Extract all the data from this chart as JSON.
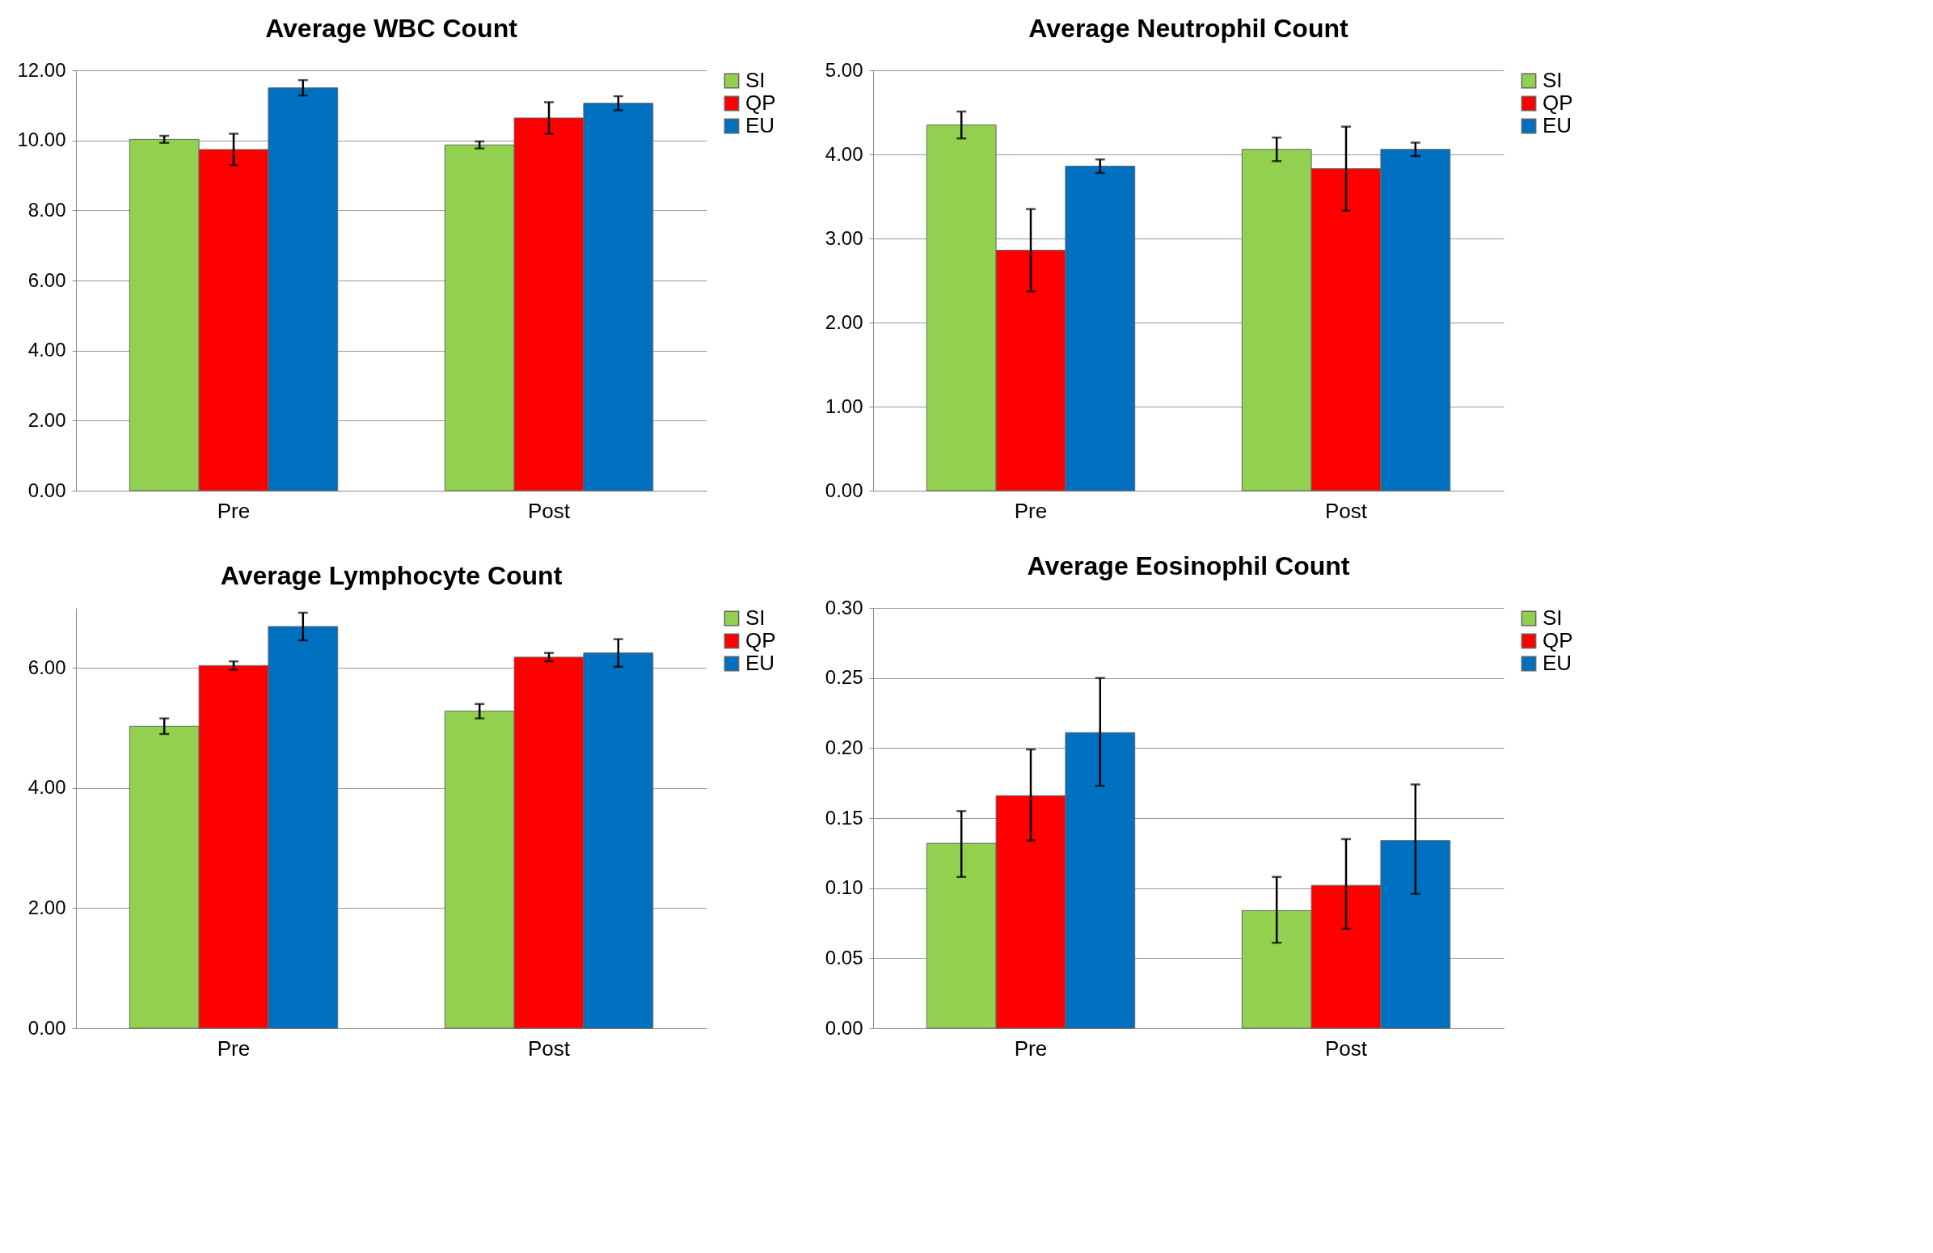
{
  "chart_data": [
    {
      "type": "bar",
      "title": "Average WBC Count",
      "categories": [
        "Pre",
        "Post"
      ],
      "ylim": [
        0,
        12
      ],
      "yticks": [
        {
          "value": 0,
          "label": "0.00"
        },
        {
          "value": 2,
          "label": "2.00"
        },
        {
          "value": 4,
          "label": "4.00"
        },
        {
          "value": 6,
          "label": "6.00"
        },
        {
          "value": 8,
          "label": "8.00"
        },
        {
          "value": 10,
          "label": "10.00"
        },
        {
          "value": 12,
          "label": "12.00"
        }
      ],
      "grid": "y",
      "legend": "right",
      "series": [
        {
          "name": "SI",
          "color": "#92d050",
          "values": [
            10.03,
            9.87
          ],
          "errors": [
            0.1,
            0.1
          ]
        },
        {
          "name": "QP",
          "color": "#ff0000",
          "values": [
            9.74,
            10.64
          ],
          "errors": [
            0.45,
            0.45
          ]
        },
        {
          "name": "EU",
          "color": "#0070c0",
          "values": [
            11.5,
            11.06
          ],
          "errors": [
            0.22,
            0.2
          ]
        }
      ]
    },
    {
      "type": "bar",
      "title": "Average Neutrophil Count",
      "categories": [
        "Pre",
        "Post"
      ],
      "ylim": [
        0,
        5
      ],
      "yticks": [
        {
          "value": 0,
          "label": "0.00"
        },
        {
          "value": 1,
          "label": "1.00"
        },
        {
          "value": 2,
          "label": "2.00"
        },
        {
          "value": 3,
          "label": "3.00"
        },
        {
          "value": 4,
          "label": "4.00"
        },
        {
          "value": 5,
          "label": "5.00"
        }
      ],
      "grid": "y",
      "legend": "right",
      "series": [
        {
          "name": "SI",
          "color": "#92d050",
          "values": [
            4.35,
            4.06
          ],
          "errors": [
            0.16,
            0.14
          ]
        },
        {
          "name": "QP",
          "color": "#ff0000",
          "values": [
            2.86,
            3.83
          ],
          "errors": [
            0.49,
            0.5
          ]
        },
        {
          "name": "EU",
          "color": "#0070c0",
          "values": [
            3.86,
            4.06
          ],
          "errors": [
            0.08,
            0.08
          ]
        }
      ]
    },
    {
      "type": "bar",
      "title": "Average Lymphocyte Count",
      "categories": [
        "Pre",
        "Post"
      ],
      "ylim": [
        0,
        7
      ],
      "yticks": [
        {
          "value": 0,
          "label": "0.00"
        },
        {
          "value": 2,
          "label": "2.00"
        },
        {
          "value": 4,
          "label": "4.00"
        },
        {
          "value": 6,
          "label": "6.00"
        }
      ],
      "grid": "y",
      "legend": "right",
      "series": [
        {
          "name": "SI",
          "color": "#92d050",
          "values": [
            5.03,
            5.28
          ],
          "errors": [
            0.13,
            0.12
          ]
        },
        {
          "name": "QP",
          "color": "#ff0000",
          "values": [
            6.04,
            6.18
          ],
          "errors": [
            0.07,
            0.07
          ]
        },
        {
          "name": "EU",
          "color": "#0070c0",
          "values": [
            6.69,
            6.25
          ],
          "errors": [
            0.23,
            0.23
          ]
        }
      ]
    },
    {
      "type": "bar",
      "title": "Average Eosinophil Count",
      "categories": [
        "Pre",
        "Post"
      ],
      "ylim": [
        0,
        0.3
      ],
      "yticks": [
        {
          "value": 0,
          "label": "0.00"
        },
        {
          "value": 0.05,
          "label": "0.05"
        },
        {
          "value": 0.1,
          "label": "0.10"
        },
        {
          "value": 0.15,
          "label": "0.15"
        },
        {
          "value": 0.2,
          "label": "0.20"
        },
        {
          "value": 0.25,
          "label": "0.25"
        },
        {
          "value": 0.3,
          "label": "0.30"
        }
      ],
      "grid": "y",
      "legend": "right",
      "series": [
        {
          "name": "SI",
          "color": "#92d050",
          "values": [
            0.132,
            0.084
          ],
          "errors": [
            [
              0.108,
              0.155
            ],
            [
              0.061,
              0.108
            ]
          ]
        },
        {
          "name": "QP",
          "color": "#ff0000",
          "values": [
            0.166,
            0.102
          ],
          "errors": [
            [
              0.134,
              0.199
            ],
            [
              0.071,
              0.135
            ]
          ]
        },
        {
          "name": "EU",
          "color": "#0070c0",
          "values": [
            0.211,
            0.134
          ],
          "errors": [
            [
              0.173,
              0.25
            ],
            [
              0.096,
              0.174
            ]
          ]
        }
      ]
    }
  ]
}
